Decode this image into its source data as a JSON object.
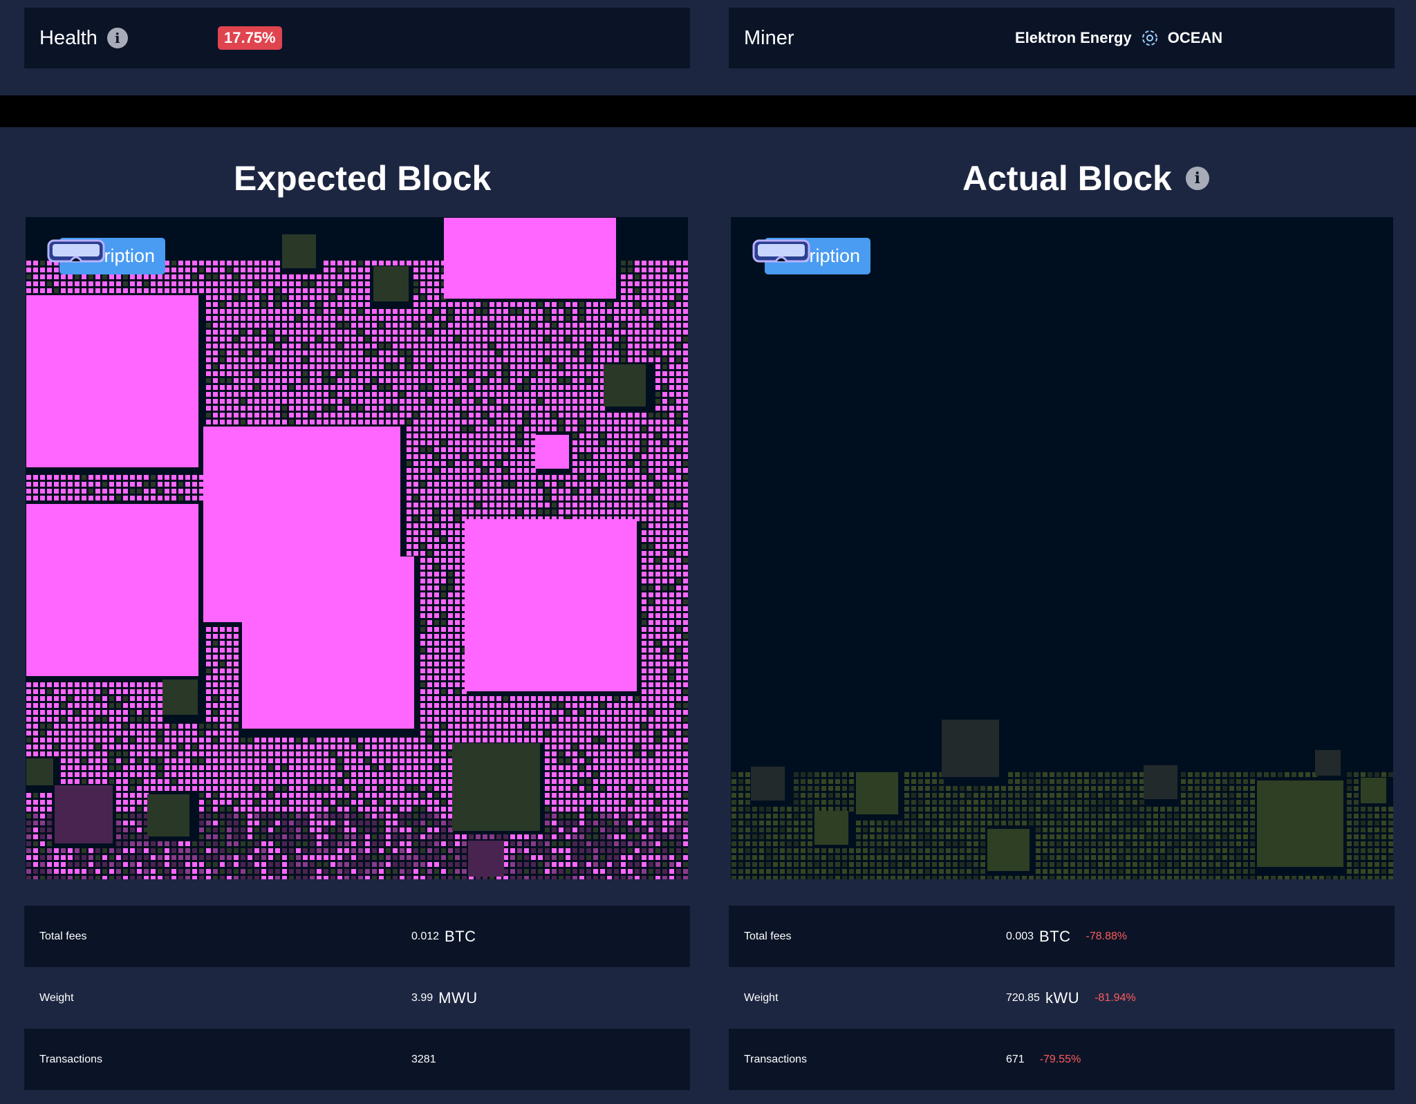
{
  "top": {
    "health": {
      "label": "Health",
      "value": "17.75%"
    },
    "miner": {
      "label": "Miner",
      "pool": "Elektron Energy",
      "template": "OCEAN"
    }
  },
  "expected": {
    "title": "Expected Block",
    "tag": "Inscription",
    "stats": [
      {
        "label": "Total fees",
        "value": "0.012",
        "unit": "BTC"
      },
      {
        "label": "Weight",
        "value": "3.99",
        "unit": "MWU"
      },
      {
        "label": "Transactions",
        "value": "3281"
      }
    ]
  },
  "actual": {
    "title": "Actual Block",
    "tag": "Inscription",
    "stats": [
      {
        "label": "Total fees",
        "value": "0.003",
        "unit": "BTC",
        "change": "-78.88%"
      },
      {
        "label": "Weight",
        "value": "720.85",
        "unit": "kWU",
        "change": "-81.94%"
      },
      {
        "label": "Transactions",
        "value": "671",
        "change": "-79.55%"
      }
    ]
  },
  "colors": {
    "background": "#1d2641",
    "box": "#0b1427",
    "inscription_pink": "#ff66ff",
    "tx_dark_green": "#2a3828",
    "tx_purple": "#4a2450",
    "negative": "#ff5c5c",
    "tag_blue": "#4a9bf2",
    "badge_red": "#e0444f"
  },
  "icons": [
    "info-icon",
    "ocean-icon",
    "glasses-icon"
  ]
}
